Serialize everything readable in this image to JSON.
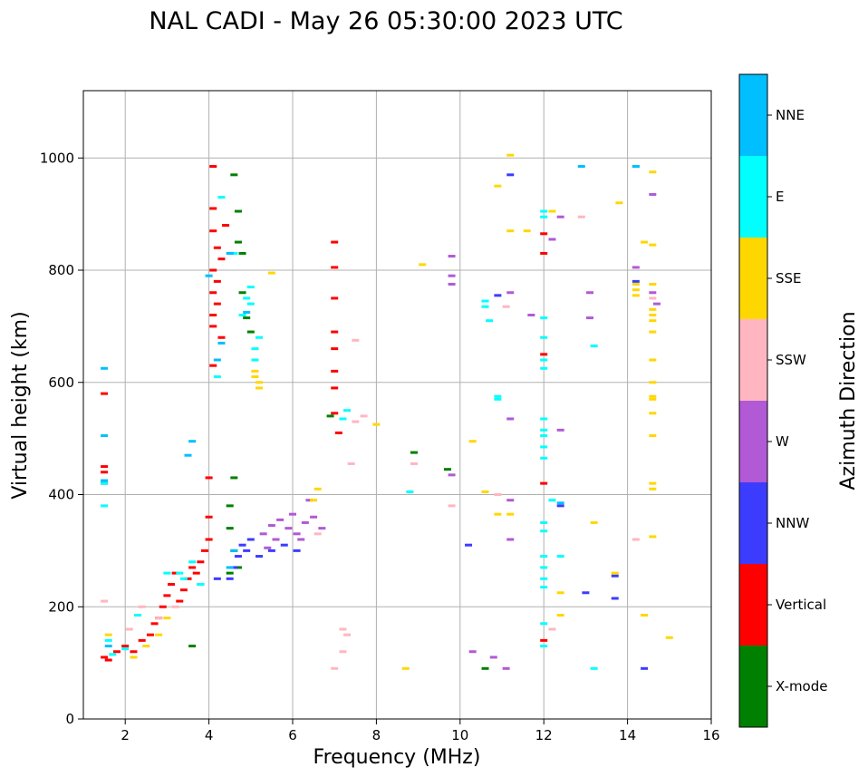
{
  "chart_data": {
    "type": "scatter",
    "title": "NAL CADI - May 26 05:30:00 2023 UTC",
    "xlabel": "Frequency (MHz)",
    "ylabel": "Virtual height (km)",
    "xlim": [
      1,
      16
    ],
    "ylim": [
      0,
      1120
    ],
    "xticks": [
      2,
      4,
      6,
      8,
      10,
      12,
      14,
      16
    ],
    "yticks": [
      0,
      200,
      400,
      600,
      800,
      1000
    ],
    "grid": true,
    "colorbar": {
      "label": "Azimuth Direction",
      "categories": [
        {
          "name": "X-mode",
          "color": "#008000"
        },
        {
          "name": "Vertical",
          "color": "#ff0000"
        },
        {
          "name": "NNW",
          "color": "#3c3cff"
        },
        {
          "name": "W",
          "color": "#b259d6"
        },
        {
          "name": "SSW",
          "color": "#ffb6c1"
        },
        {
          "name": "SSE",
          "color": "#ffd700"
        },
        {
          "name": "E",
          "color": "#00ffff"
        },
        {
          "name": "NNE",
          "color": "#00bfff"
        }
      ]
    },
    "clusters": [
      {
        "direction": "Vertical",
        "points": [
          [
            1.5,
            580
          ],
          [
            1.5,
            450
          ],
          [
            1.5,
            440
          ],
          [
            1.5,
            420
          ],
          [
            1.5,
            110
          ],
          [
            1.6,
            105
          ],
          [
            1.8,
            120
          ],
          [
            2.0,
            130
          ],
          [
            2.2,
            120
          ],
          [
            2.4,
            140
          ],
          [
            2.6,
            150
          ],
          [
            2.7,
            170
          ],
          [
            2.8,
            180
          ],
          [
            2.9,
            200
          ],
          [
            3.0,
            220
          ],
          [
            3.1,
            240
          ],
          [
            3.2,
            260
          ],
          [
            3.3,
            210
          ],
          [
            3.4,
            230
          ],
          [
            3.5,
            250
          ],
          [
            3.6,
            270
          ],
          [
            3.7,
            260
          ],
          [
            3.8,
            280
          ],
          [
            3.9,
            300
          ],
          [
            4.0,
            320
          ],
          [
            4.0,
            430
          ],
          [
            4.0,
            360
          ],
          [
            4.1,
            985
          ],
          [
            4.1,
            910
          ],
          [
            4.1,
            870
          ],
          [
            4.1,
            800
          ],
          [
            4.1,
            760
          ],
          [
            4.1,
            720
          ],
          [
            4.1,
            700
          ],
          [
            4.1,
            630
          ],
          [
            4.2,
            840
          ],
          [
            4.2,
            780
          ],
          [
            4.2,
            740
          ],
          [
            4.3,
            820
          ],
          [
            4.3,
            680
          ],
          [
            4.4,
            880
          ],
          [
            7.0,
            850
          ],
          [
            7.0,
            805
          ],
          [
            7.0,
            750
          ],
          [
            7.0,
            690
          ],
          [
            7.0,
            660
          ],
          [
            7.0,
            620
          ],
          [
            7.0,
            590
          ],
          [
            7.0,
            545
          ],
          [
            7.1,
            510
          ],
          [
            12.0,
            865
          ],
          [
            12.0,
            830
          ],
          [
            12.0,
            650
          ],
          [
            12.0,
            420
          ],
          [
            12.0,
            140
          ]
        ]
      },
      {
        "direction": "X-mode",
        "points": [
          [
            4.6,
            970
          ],
          [
            4.7,
            905
          ],
          [
            4.7,
            850
          ],
          [
            4.8,
            830
          ],
          [
            4.8,
            760
          ],
          [
            4.9,
            715
          ],
          [
            5.0,
            690
          ],
          [
            4.5,
            380
          ],
          [
            4.5,
            340
          ],
          [
            4.6,
            300
          ],
          [
            4.5,
            260
          ],
          [
            4.7,
            270
          ],
          [
            4.6,
            430
          ],
          [
            3.6,
            130
          ],
          [
            6.9,
            540
          ],
          [
            8.9,
            475
          ],
          [
            9.7,
            445
          ],
          [
            10.6,
            90
          ]
        ]
      },
      {
        "direction": "NNW",
        "points": [
          [
            4.5,
            250
          ],
          [
            4.6,
            270
          ],
          [
            4.7,
            290
          ],
          [
            4.8,
            310
          ],
          [
            4.9,
            300
          ],
          [
            5.0,
            320
          ],
          [
            5.2,
            290
          ],
          [
            5.5,
            300
          ],
          [
            5.8,
            310
          ],
          [
            6.1,
            300
          ],
          [
            3.8,
            240
          ],
          [
            4.2,
            250
          ],
          [
            10.2,
            310
          ],
          [
            10.9,
            755
          ],
          [
            11.2,
            970
          ],
          [
            12.4,
            380
          ],
          [
            13.0,
            225
          ],
          [
            13.7,
            255
          ],
          [
            13.7,
            215
          ],
          [
            14.2,
            780
          ],
          [
            14.4,
            90
          ]
        ]
      },
      {
        "direction": "W",
        "points": [
          [
            5.3,
            330
          ],
          [
            5.5,
            345
          ],
          [
            5.7,
            355
          ],
          [
            5.9,
            340
          ],
          [
            6.1,
            330
          ],
          [
            6.3,
            350
          ],
          [
            6.5,
            360
          ],
          [
            6.7,
            340
          ],
          [
            6.0,
            365
          ],
          [
            5.4,
            305
          ],
          [
            5.6,
            320
          ],
          [
            6.2,
            320
          ],
          [
            6.4,
            390
          ],
          [
            9.8,
            825
          ],
          [
            9.8,
            790
          ],
          [
            9.8,
            775
          ],
          [
            9.8,
            435
          ],
          [
            10.3,
            120
          ],
          [
            10.8,
            110
          ],
          [
            11.1,
            90
          ],
          [
            11.2,
            760
          ],
          [
            11.2,
            535
          ],
          [
            11.2,
            390
          ],
          [
            11.2,
            320
          ],
          [
            11.7,
            720
          ],
          [
            12.2,
            855
          ],
          [
            12.4,
            895
          ],
          [
            12.4,
            515
          ],
          [
            13.1,
            760
          ],
          [
            13.1,
            715
          ],
          [
            14.2,
            805
          ],
          [
            14.6,
            935
          ],
          [
            14.6,
            760
          ],
          [
            14.7,
            740
          ]
        ]
      },
      {
        "direction": "SSW",
        "points": [
          [
            1.5,
            210
          ],
          [
            2.1,
            160
          ],
          [
            2.4,
            200
          ],
          [
            2.8,
            180
          ],
          [
            3.2,
            200
          ],
          [
            6.6,
            330
          ],
          [
            7.0,
            90
          ],
          [
            7.2,
            160
          ],
          [
            7.2,
            120
          ],
          [
            7.3,
            150
          ],
          [
            7.5,
            675
          ],
          [
            7.5,
            530
          ],
          [
            7.7,
            540
          ],
          [
            7.4,
            455
          ],
          [
            8.9,
            455
          ],
          [
            9.8,
            380
          ],
          [
            10.9,
            400
          ],
          [
            11.1,
            735
          ],
          [
            12.2,
            160
          ],
          [
            12.9,
            895
          ],
          [
            14.2,
            320
          ],
          [
            14.6,
            750
          ]
        ]
      },
      {
        "direction": "SSE",
        "points": [
          [
            1.6,
            150
          ],
          [
            2.2,
            110
          ],
          [
            2.5,
            130
          ],
          [
            2.8,
            150
          ],
          [
            3.0,
            180
          ],
          [
            5.1,
            620
          ],
          [
            5.1,
            610
          ],
          [
            5.2,
            600
          ],
          [
            5.2,
            590
          ],
          [
            5.5,
            795
          ],
          [
            6.5,
            390
          ],
          [
            6.6,
            410
          ],
          [
            8.0,
            525
          ],
          [
            8.7,
            90
          ],
          [
            9.1,
            810
          ],
          [
            10.3,
            495
          ],
          [
            10.6,
            405
          ],
          [
            10.9,
            950
          ],
          [
            10.9,
            365
          ],
          [
            11.2,
            1005
          ],
          [
            11.2,
            870
          ],
          [
            11.2,
            365
          ],
          [
            11.6,
            870
          ],
          [
            12.2,
            905
          ],
          [
            12.4,
            225
          ],
          [
            12.4,
            185
          ],
          [
            13.2,
            350
          ],
          [
            13.8,
            920
          ],
          [
            13.7,
            260
          ],
          [
            14.2,
            775
          ],
          [
            14.2,
            765
          ],
          [
            14.2,
            755
          ],
          [
            14.4,
            850
          ],
          [
            14.4,
            185
          ],
          [
            14.6,
            975
          ],
          [
            14.6,
            845
          ],
          [
            14.6,
            775
          ],
          [
            14.6,
            730
          ],
          [
            14.6,
            720
          ],
          [
            14.6,
            710
          ],
          [
            14.6,
            690
          ],
          [
            14.6,
            640
          ],
          [
            14.6,
            600
          ],
          [
            14.6,
            575
          ],
          [
            14.6,
            570
          ],
          [
            14.6,
            545
          ],
          [
            14.6,
            505
          ],
          [
            14.6,
            420
          ],
          [
            14.6,
            410
          ],
          [
            14.6,
            325
          ],
          [
            15.0,
            145
          ]
        ]
      },
      {
        "direction": "E",
        "points": [
          [
            1.5,
            420
          ],
          [
            1.5,
            380
          ],
          [
            1.6,
            140
          ],
          [
            1.7,
            115
          ],
          [
            2.0,
            125
          ],
          [
            2.3,
            185
          ],
          [
            3.0,
            260
          ],
          [
            3.3,
            260
          ],
          [
            3.4,
            250
          ],
          [
            3.6,
            280
          ],
          [
            3.8,
            240
          ],
          [
            4.2,
            610
          ],
          [
            4.3,
            930
          ],
          [
            4.6,
            830
          ],
          [
            4.8,
            720
          ],
          [
            4.9,
            750
          ],
          [
            5.0,
            770
          ],
          [
            5.0,
            740
          ],
          [
            5.1,
            640
          ],
          [
            5.1,
            660
          ],
          [
            5.2,
            680
          ],
          [
            7.2,
            535
          ],
          [
            7.3,
            550
          ],
          [
            8.8,
            405
          ],
          [
            10.6,
            745
          ],
          [
            10.6,
            735
          ],
          [
            10.7,
            710
          ],
          [
            10.9,
            575
          ],
          [
            10.9,
            570
          ],
          [
            12.0,
            905
          ],
          [
            12.0,
            895
          ],
          [
            12.0,
            715
          ],
          [
            12.0,
            680
          ],
          [
            12.0,
            640
          ],
          [
            12.0,
            625
          ],
          [
            12.0,
            535
          ],
          [
            12.0,
            515
          ],
          [
            12.0,
            505
          ],
          [
            12.0,
            485
          ],
          [
            12.0,
            465
          ],
          [
            12.0,
            350
          ],
          [
            12.0,
            335
          ],
          [
            12.0,
            290
          ],
          [
            12.0,
            270
          ],
          [
            12.0,
            250
          ],
          [
            12.0,
            235
          ],
          [
            12.0,
            170
          ],
          [
            12.0,
            130
          ],
          [
            12.2,
            390
          ],
          [
            12.4,
            290
          ],
          [
            13.2,
            665
          ],
          [
            13.2,
            90
          ],
          [
            14.2,
            985
          ]
        ]
      },
      {
        "direction": "NNE",
        "points": [
          [
            1.5,
            625
          ],
          [
            1.5,
            505
          ],
          [
            1.5,
            425
          ],
          [
            1.6,
            130
          ],
          [
            3.5,
            470
          ],
          [
            3.6,
            495
          ],
          [
            4.0,
            790
          ],
          [
            4.2,
            640
          ],
          [
            4.3,
            670
          ],
          [
            4.5,
            830
          ],
          [
            4.9,
            725
          ],
          [
            4.5,
            270
          ],
          [
            4.6,
            300
          ],
          [
            12.4,
            385
          ],
          [
            12.9,
            985
          ],
          [
            14.2,
            985
          ]
        ]
      }
    ]
  }
}
